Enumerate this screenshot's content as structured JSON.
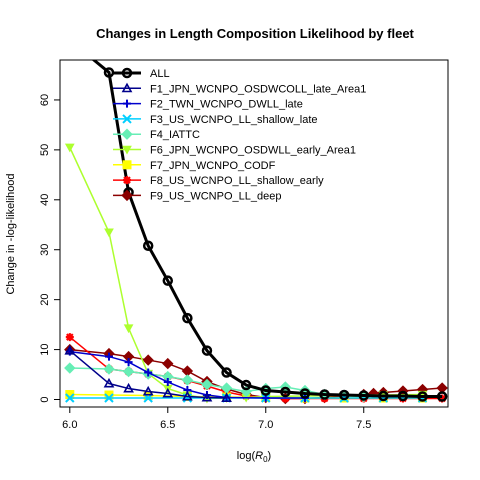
{
  "chart_data": {
    "type": "line",
    "title": "Changes in Length Composition Likelihood by fleet",
    "xlabel_main": "log(",
    "xlabel_sub": "R",
    "xlabel_subscript": "0",
    "xlabel_close": ")",
    "ylabel": "Change in -log-likelihood",
    "xlim": [
      5.95,
      7.93
    ],
    "ylim": [
      -1.5,
      68
    ],
    "x_ticks": [
      {
        "v": 6.0,
        "label": "6.0"
      },
      {
        "v": 6.5,
        "label": "6.5"
      },
      {
        "v": 7.0,
        "label": "7.0"
      },
      {
        "v": 7.5,
        "label": "7.5"
      }
    ],
    "y_ticks": [
      {
        "v": 0,
        "label": "0"
      },
      {
        "v": 10,
        "label": "10"
      },
      {
        "v": 20,
        "label": "20"
      },
      {
        "v": 30,
        "label": "30"
      },
      {
        "v": 40,
        "label": "40"
      },
      {
        "v": 50,
        "label": "50"
      },
      {
        "v": 60,
        "label": "60"
      }
    ],
    "legend_position": "top-right",
    "series": [
      {
        "name": "ALL",
        "color": "#000000",
        "marker": "circle-open",
        "width": 3,
        "x": [
          6.0,
          6.2,
          6.3,
          6.4,
          6.5,
          6.6,
          6.7,
          6.8,
          6.9,
          7.0,
          7.1,
          7.2,
          7.3,
          7.4,
          7.5,
          7.6,
          7.7,
          7.8,
          7.9
        ],
        "y": [
          72.0,
          65.5,
          41.5,
          30.8,
          23.8,
          16.3,
          9.8,
          5.4,
          2.9,
          1.8,
          1.5,
          1.2,
          1.0,
          0.9,
          0.8,
          0.7,
          0.7,
          0.6,
          0.6
        ]
      },
      {
        "name": "F1_JPN_WCNPO_OSDWCOLL_late_Area1",
        "color": "#00008B",
        "marker": "triangle-up",
        "width": 1.5,
        "x": [
          6.0,
          6.2,
          6.3,
          6.4,
          6.5,
          6.6,
          6.7,
          6.8
        ],
        "y": [
          9.8,
          3.2,
          2.2,
          1.6,
          1.2,
          0.6,
          0.4,
          0.3
        ]
      },
      {
        "name": "F2_TWN_WCNPO_DWLL_late",
        "color": "#0000CD",
        "marker": "plus",
        "width": 1.5,
        "x": [
          6.0,
          6.2,
          6.3,
          6.4,
          6.5,
          6.6,
          6.7,
          6.8,
          7.0,
          7.2
        ],
        "y": [
          9.6,
          8.6,
          7.5,
          5.4,
          3.5,
          1.9,
          0.9,
          0.4,
          0.3,
          0.3
        ]
      },
      {
        "name": "F3_US_WCNPO_LL_shallow_late",
        "color": "#00CFFF",
        "marker": "x",
        "width": 1.5,
        "x": [
          6.0,
          6.2,
          6.4,
          6.6,
          6.8,
          7.0,
          7.2,
          7.4,
          7.6,
          7.8
        ],
        "y": [
          0.3,
          0.3,
          0.3,
          0.3,
          0.3,
          0.3,
          0.3,
          0.3,
          0.3,
          0.3
        ]
      },
      {
        "name": "F4_IATTC",
        "color": "#66EEB5",
        "marker": "diamond",
        "width": 1.5,
        "x": [
          6.0,
          6.2,
          6.3,
          6.4,
          6.5,
          6.6,
          6.7,
          6.8,
          6.9,
          7.0,
          7.1,
          7.2,
          7.3,
          7.4,
          7.5
        ],
        "y": [
          6.3,
          6.1,
          5.6,
          5.1,
          4.6,
          3.9,
          3.0,
          2.3,
          1.6,
          2.2,
          2.5,
          1.8,
          1.0,
          0.7,
          0.6
        ]
      },
      {
        "name": "F6_JPN_WCNPO_OSDWLL_early_Area1",
        "color": "#ADFF2F",
        "marker": "triangle-down",
        "width": 1.5,
        "x": [
          6.0,
          6.2,
          6.3,
          6.4,
          6.5,
          6.6,
          6.7,
          6.8,
          6.9,
          7.0,
          7.2,
          7.4,
          7.6,
          7.8
        ],
        "y": [
          50.5,
          33.5,
          14.3,
          5.2,
          2.2,
          0.9,
          0.2,
          0.3,
          0.4,
          0.6,
          0.7,
          0.8,
          0.9,
          1.0
        ]
      },
      {
        "name": "F7_JPN_WCNPO_CODF",
        "color": "#FFFF00",
        "marker": "square",
        "width": 1.5,
        "x": [
          6.0,
          6.2,
          6.4,
          6.6,
          6.8,
          7.0,
          7.2,
          7.4,
          7.6,
          7.8
        ],
        "y": [
          1.0,
          0.9,
          0.8,
          0.6,
          0.5,
          0.4,
          0.3,
          0.3,
          0.3,
          0.3
        ]
      },
      {
        "name": "F8_US_WCNPO_LL_shallow_early",
        "color": "#FF0000",
        "marker": "asterisk",
        "width": 1.5,
        "x": [
          6.0,
          6.2,
          6.3,
          6.4,
          6.5,
          6.6,
          6.7,
          6.8,
          6.9,
          7.0,
          7.1,
          7.2,
          7.3,
          7.4,
          7.5,
          7.6,
          7.7,
          7.8,
          7.9
        ],
        "y": [
          12.5,
          6.1,
          5.6,
          5.1,
          4.6,
          3.8,
          2.7,
          1.5,
          0.7,
          0.3,
          0.2,
          0.2,
          0.2,
          0.2,
          0.2,
          0.2,
          0.2,
          0.2,
          0.2
        ]
      },
      {
        "name": "F9_US_WCNPO_LL_deep",
        "color": "#8B0000",
        "marker": "diamond",
        "width": 1.5,
        "x": [
          6.0,
          6.2,
          6.3,
          6.4,
          6.5,
          6.6,
          6.7,
          6.8,
          6.9,
          7.0,
          7.1,
          7.2,
          7.3,
          7.4,
          7.5,
          7.55,
          7.6,
          7.7,
          7.8,
          7.9
        ],
        "y": [
          10.0,
          9.2,
          8.6,
          7.9,
          7.2,
          5.7,
          3.6,
          2.1,
          1.0,
          0.4,
          0.2,
          0.2,
          0.4,
          0.7,
          1.0,
          1.2,
          1.4,
          1.7,
          2.0,
          2.3
        ]
      }
    ]
  }
}
